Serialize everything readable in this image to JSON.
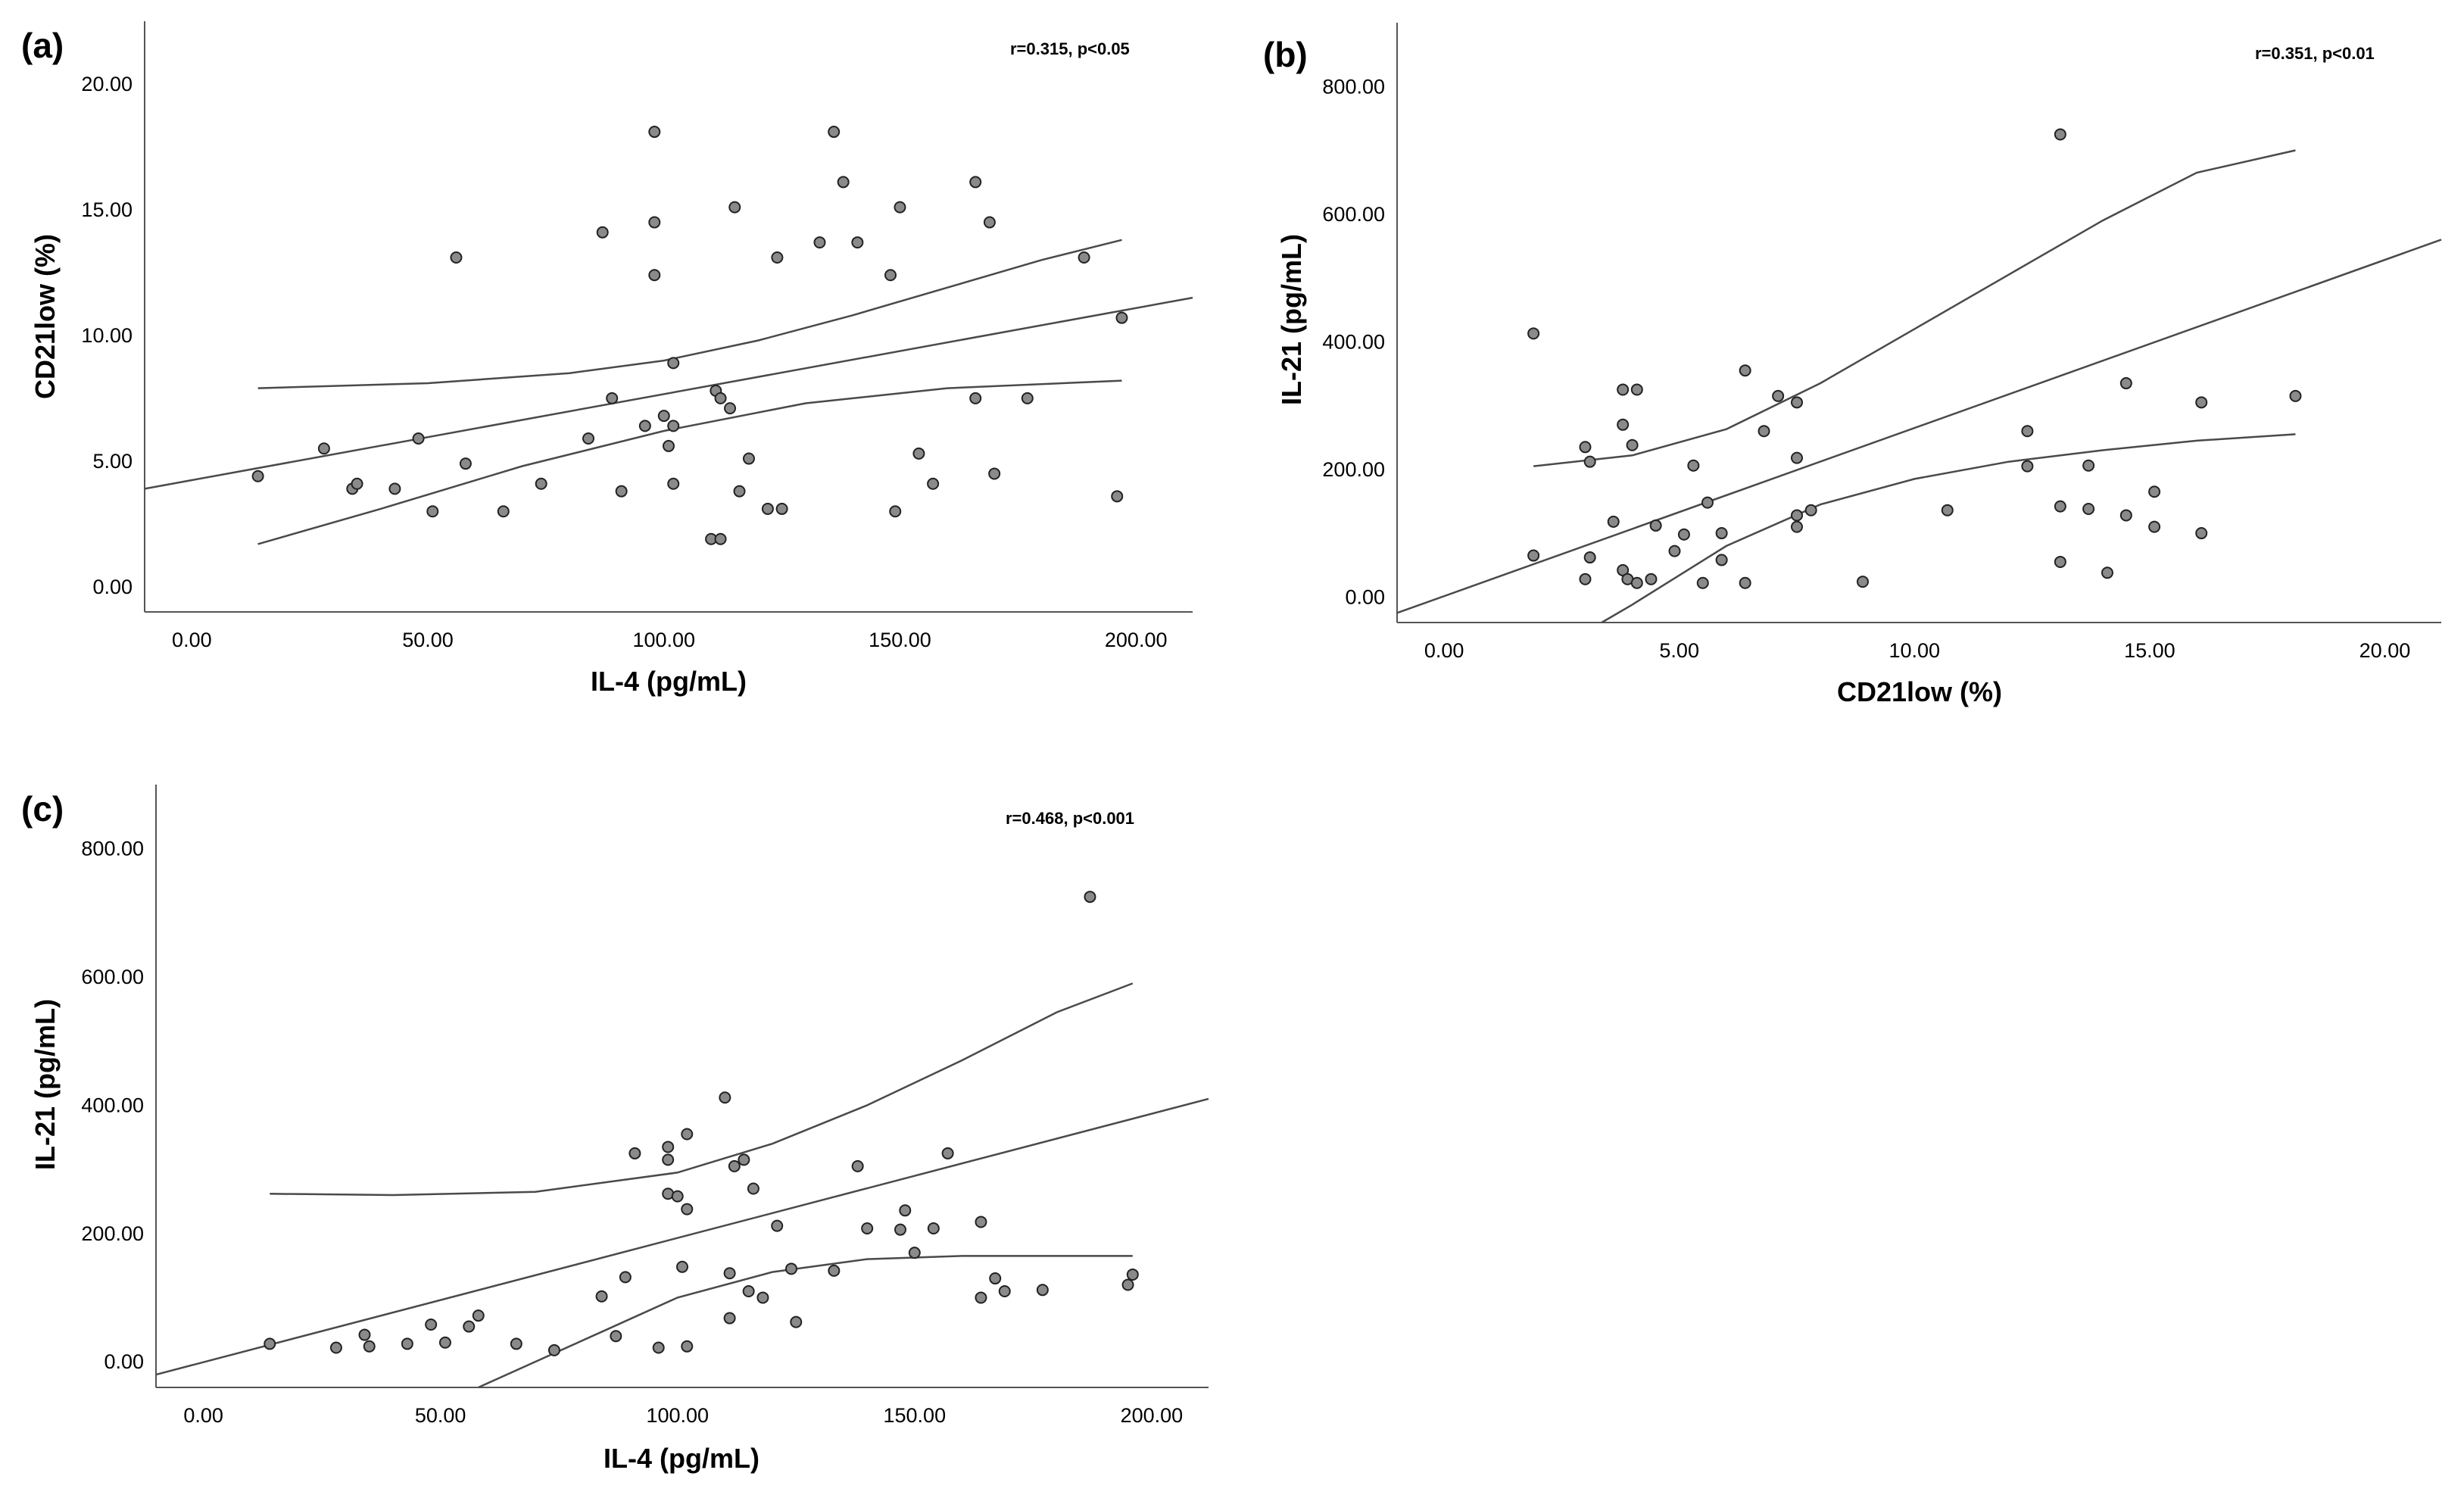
{
  "chart_data": [
    {
      "id": "a",
      "panel_label": "(a)",
      "type": "scatter",
      "annotation": "r=0.315, p<0.05",
      "xlabel": "IL-4 (pg/mL)",
      "ylabel": "CD21low (%)",
      "xlim": [
        -10,
        212
      ],
      "ylim": [
        -1.0,
        22.5
      ],
      "x_ticks": [
        0,
        50,
        100,
        150,
        200
      ],
      "y_ticks": [
        0,
        5,
        10,
        15,
        20
      ],
      "x_tick_labels": [
        "0.00",
        "50.00",
        "100.00",
        "150.00",
        "200.00"
      ],
      "y_tick_labels": [
        "0.00",
        "5.00",
        "10.00",
        "15.00",
        "20.00"
      ],
      "points": [
        {
          "x": 14,
          "y": 4.4
        },
        {
          "x": 28,
          "y": 5.5
        },
        {
          "x": 34,
          "y": 3.9
        },
        {
          "x": 35,
          "y": 4.1
        },
        {
          "x": 43,
          "y": 3.9
        },
        {
          "x": 48,
          "y": 5.9
        },
        {
          "x": 51,
          "y": 3.0
        },
        {
          "x": 56,
          "y": 13.1
        },
        {
          "x": 58,
          "y": 4.9
        },
        {
          "x": 66,
          "y": 3.0
        },
        {
          "x": 74,
          "y": 4.1
        },
        {
          "x": 84,
          "y": 5.9
        },
        {
          "x": 87,
          "y": 14.1
        },
        {
          "x": 89,
          "y": 7.5
        },
        {
          "x": 91,
          "y": 3.8
        },
        {
          "x": 96,
          "y": 6.4
        },
        {
          "x": 98,
          "y": 12.4
        },
        {
          "x": 98,
          "y": 14.5
        },
        {
          "x": 98,
          "y": 18.1
        },
        {
          "x": 100,
          "y": 6.8
        },
        {
          "x": 101,
          "y": 5.6
        },
        {
          "x": 102,
          "y": 4.1
        },
        {
          "x": 102,
          "y": 6.4
        },
        {
          "x": 102,
          "y": 8.9
        },
        {
          "x": 110,
          "y": 1.9
        },
        {
          "x": 111,
          "y": 7.8
        },
        {
          "x": 112,
          "y": 1.9
        },
        {
          "x": 112,
          "y": 7.5
        },
        {
          "x": 114,
          "y": 7.1
        },
        {
          "x": 115,
          "y": 15.1
        },
        {
          "x": 116,
          "y": 3.8
        },
        {
          "x": 118,
          "y": 5.1
        },
        {
          "x": 122,
          "y": 3.1
        },
        {
          "x": 124,
          "y": 13.1
        },
        {
          "x": 125,
          "y": 3.1
        },
        {
          "x": 133,
          "y": 13.7
        },
        {
          "x": 136,
          "y": 18.1
        },
        {
          "x": 138,
          "y": 16.1
        },
        {
          "x": 141,
          "y": 13.7
        },
        {
          "x": 148,
          "y": 12.4
        },
        {
          "x": 149,
          "y": 3.0
        },
        {
          "x": 150,
          "y": 15.1
        },
        {
          "x": 154,
          "y": 5.3
        },
        {
          "x": 157,
          "y": 4.1
        },
        {
          "x": 166,
          "y": 7.5
        },
        {
          "x": 166,
          "y": 16.1
        },
        {
          "x": 169,
          "y": 14.5
        },
        {
          "x": 170,
          "y": 4.5
        },
        {
          "x": 177,
          "y": 7.5
        },
        {
          "x": 189,
          "y": 13.1
        },
        {
          "x": 196,
          "y": 3.6
        },
        {
          "x": 197,
          "y": 10.7
        }
      ],
      "fit_line": [
        {
          "x": -10,
          "y": 3.9
        },
        {
          "x": 212,
          "y": 11.5
        }
      ],
      "ci_upper": [
        {
          "x": 14,
          "y": 7.9
        },
        {
          "x": 50,
          "y": 8.1
        },
        {
          "x": 80,
          "y": 8.5
        },
        {
          "x": 100,
          "y": 9.0
        },
        {
          "x": 120,
          "y": 9.8
        },
        {
          "x": 140,
          "y": 10.8
        },
        {
          "x": 160,
          "y": 11.9
        },
        {
          "x": 180,
          "y": 13.0
        },
        {
          "x": 197,
          "y": 13.8
        }
      ],
      "ci_lower": [
        {
          "x": 14,
          "y": 1.7
        },
        {
          "x": 40,
          "y": 3.1
        },
        {
          "x": 70,
          "y": 4.8
        },
        {
          "x": 100,
          "y": 6.2
        },
        {
          "x": 130,
          "y": 7.3
        },
        {
          "x": 160,
          "y": 7.9
        },
        {
          "x": 197,
          "y": 8.2
        }
      ]
    },
    {
      "id": "b",
      "panel_label": "(b)",
      "type": "scatter",
      "annotation": "r=0.351, p<0.01",
      "xlabel": "CD21low (%)",
      "ylabel": "IL-21 (pg/mL)",
      "xlim": [
        -1.0,
        21.2
      ],
      "ylim": [
        -40,
        900
      ],
      "x_ticks": [
        0,
        5,
        10,
        15,
        20
      ],
      "y_ticks": [
        0,
        200,
        400,
        600,
        800
      ],
      "x_tick_labels": [
        "0.00",
        "5.00",
        "10.00",
        "15.00",
        "20.00"
      ],
      "y_tick_labels": [
        "0.00",
        "200.00",
        "400.00",
        "600.00",
        "800.00"
      ],
      "points": [
        {
          "x": 1.9,
          "y": 413
        },
        {
          "x": 1.9,
          "y": 65
        },
        {
          "x": 3.0,
          "y": 235
        },
        {
          "x": 3.0,
          "y": 28
        },
        {
          "x": 3.1,
          "y": 212
        },
        {
          "x": 3.1,
          "y": 62
        },
        {
          "x": 3.6,
          "y": 118
        },
        {
          "x": 3.8,
          "y": 325
        },
        {
          "x": 3.8,
          "y": 270
        },
        {
          "x": 3.8,
          "y": 42
        },
        {
          "x": 3.9,
          "y": 28
        },
        {
          "x": 4.0,
          "y": 238
        },
        {
          "x": 4.1,
          "y": 325
        },
        {
          "x": 4.1,
          "y": 22
        },
        {
          "x": 4.4,
          "y": 28
        },
        {
          "x": 4.5,
          "y": 112
        },
        {
          "x": 4.9,
          "y": 72
        },
        {
          "x": 5.1,
          "y": 98
        },
        {
          "x": 5.3,
          "y": 206
        },
        {
          "x": 5.5,
          "y": 22
        },
        {
          "x": 5.6,
          "y": 148
        },
        {
          "x": 5.9,
          "y": 100
        },
        {
          "x": 5.9,
          "y": 58
        },
        {
          "x": 6.4,
          "y": 355
        },
        {
          "x": 6.4,
          "y": 22
        },
        {
          "x": 6.8,
          "y": 260
        },
        {
          "x": 7.1,
          "y": 315
        },
        {
          "x": 7.5,
          "y": 218
        },
        {
          "x": 7.5,
          "y": 128
        },
        {
          "x": 7.5,
          "y": 110
        },
        {
          "x": 7.5,
          "y": 305
        },
        {
          "x": 7.8,
          "y": 136
        },
        {
          "x": 8.9,
          "y": 24
        },
        {
          "x": 10.7,
          "y": 136
        },
        {
          "x": 12.4,
          "y": 260
        },
        {
          "x": 12.4,
          "y": 205
        },
        {
          "x": 13.1,
          "y": 725
        },
        {
          "x": 13.1,
          "y": 142
        },
        {
          "x": 13.1,
          "y": 55
        },
        {
          "x": 13.7,
          "y": 206
        },
        {
          "x": 13.7,
          "y": 138
        },
        {
          "x": 14.1,
          "y": 38
        },
        {
          "x": 14.5,
          "y": 335
        },
        {
          "x": 14.5,
          "y": 128
        },
        {
          "x": 15.1,
          "y": 165
        },
        {
          "x": 15.1,
          "y": 110
        },
        {
          "x": 16.1,
          "y": 305
        },
        {
          "x": 16.1,
          "y": 100
        },
        {
          "x": 18.1,
          "y": 315
        }
      ],
      "fit_line": [
        {
          "x": -1.0,
          "y": -25
        },
        {
          "x": 21.2,
          "y": 560
        }
      ],
      "ci_upper": [
        {
          "x": 1.9,
          "y": 205
        },
        {
          "x": 4,
          "y": 222
        },
        {
          "x": 6,
          "y": 263
        },
        {
          "x": 8,
          "y": 335
        },
        {
          "x": 10,
          "y": 420
        },
        {
          "x": 12,
          "y": 505
        },
        {
          "x": 14,
          "y": 590
        },
        {
          "x": 16,
          "y": 665
        },
        {
          "x": 18.1,
          "y": 700
        }
      ],
      "ci_lower": [
        {
          "x": 3.35,
          "y": -40
        },
        {
          "x": 4,
          "y": -12
        },
        {
          "x": 6,
          "y": 80
        },
        {
          "x": 8,
          "y": 145
        },
        {
          "x": 10,
          "y": 185
        },
        {
          "x": 12,
          "y": 212
        },
        {
          "x": 14,
          "y": 230
        },
        {
          "x": 16,
          "y": 245
        },
        {
          "x": 18.1,
          "y": 255
        }
      ]
    },
    {
      "id": "c",
      "panel_label": "(c)",
      "type": "scatter",
      "annotation": "r=0.468, p<0.001",
      "xlabel": "IL-4 (pg/mL)",
      "ylabel": "IL-21 (pg/mL)",
      "xlim": [
        -10,
        212
      ],
      "ylim": [
        -40,
        900
      ],
      "x_ticks": [
        0,
        50,
        100,
        150,
        200
      ],
      "y_ticks": [
        0,
        200,
        400,
        600,
        800
      ],
      "x_tick_labels": [
        "0.00",
        "50.00",
        "100.00",
        "150.00",
        "200.00"
      ],
      "y_tick_labels": [
        "0.00",
        "200.00",
        "400.00",
        "600.00",
        "800.00"
      ],
      "points": [
        {
          "x": 14,
          "y": 28
        },
        {
          "x": 28,
          "y": 22
        },
        {
          "x": 34,
          "y": 42
        },
        {
          "x": 35,
          "y": 24
        },
        {
          "x": 43,
          "y": 28
        },
        {
          "x": 48,
          "y": 58
        },
        {
          "x": 51,
          "y": 30
        },
        {
          "x": 56,
          "y": 55
        },
        {
          "x": 58,
          "y": 72
        },
        {
          "x": 66,
          "y": 28
        },
        {
          "x": 74,
          "y": 18
        },
        {
          "x": 84,
          "y": 102
        },
        {
          "x": 87,
          "y": 40
        },
        {
          "x": 89,
          "y": 132
        },
        {
          "x": 91,
          "y": 325
        },
        {
          "x": 96,
          "y": 22
        },
        {
          "x": 98,
          "y": 262
        },
        {
          "x": 98,
          "y": 315
        },
        {
          "x": 98,
          "y": 335
        },
        {
          "x": 100,
          "y": 258
        },
        {
          "x": 101,
          "y": 148
        },
        {
          "x": 102,
          "y": 238
        },
        {
          "x": 102,
          "y": 355
        },
        {
          "x": 102,
          "y": 24
        },
        {
          "x": 110,
          "y": 412
        },
        {
          "x": 111,
          "y": 138
        },
        {
          "x": 111,
          "y": 68
        },
        {
          "x": 112,
          "y": 305
        },
        {
          "x": 114,
          "y": 315
        },
        {
          "x": 115,
          "y": 110
        },
        {
          "x": 116,
          "y": 270
        },
        {
          "x": 118,
          "y": 100
        },
        {
          "x": 121,
          "y": 212
        },
        {
          "x": 124,
          "y": 145
        },
        {
          "x": 125,
          "y": 62
        },
        {
          "x": 133,
          "y": 142
        },
        {
          "x": 138,
          "y": 305
        },
        {
          "x": 140,
          "y": 208
        },
        {
          "x": 147,
          "y": 206
        },
        {
          "x": 148,
          "y": 236
        },
        {
          "x": 150,
          "y": 170
        },
        {
          "x": 154,
          "y": 208
        },
        {
          "x": 157,
          "y": 325
        },
        {
          "x": 164,
          "y": 218
        },
        {
          "x": 164,
          "y": 100
        },
        {
          "x": 167,
          "y": 130
        },
        {
          "x": 169,
          "y": 110
        },
        {
          "x": 177,
          "y": 112
        },
        {
          "x": 187,
          "y": 725
        },
        {
          "x": 195,
          "y": 120
        },
        {
          "x": 196,
          "y": 136
        }
      ],
      "fit_line": [
        {
          "x": -10,
          "y": -20
        },
        {
          "x": 212,
          "y": 410
        }
      ],
      "ci_upper": [
        {
          "x": 14,
          "y": 262
        },
        {
          "x": 40,
          "y": 260
        },
        {
          "x": 70,
          "y": 265
        },
        {
          "x": 100,
          "y": 295
        },
        {
          "x": 120,
          "y": 340
        },
        {
          "x": 140,
          "y": 400
        },
        {
          "x": 160,
          "y": 470
        },
        {
          "x": 180,
          "y": 545
        },
        {
          "x": 196,
          "y": 590
        }
      ],
      "ci_lower": [
        {
          "x": 58,
          "y": -40
        },
        {
          "x": 70,
          "y": 0
        },
        {
          "x": 85,
          "y": 50
        },
        {
          "x": 100,
          "y": 100
        },
        {
          "x": 120,
          "y": 140
        },
        {
          "x": 140,
          "y": 160
        },
        {
          "x": 160,
          "y": 165
        },
        {
          "x": 196,
          "y": 165
        }
      ]
    }
  ]
}
